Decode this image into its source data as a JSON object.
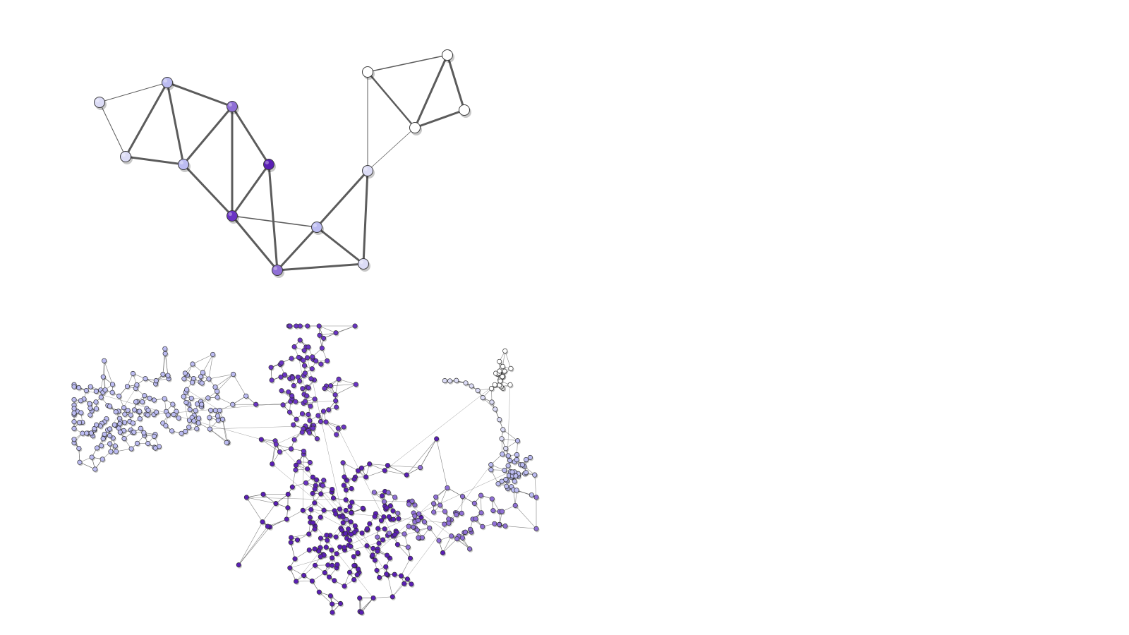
{
  "palette": {
    "n0": "#ffffff",
    "n1": "#dcdcf6",
    "n2": "#bcbcf2",
    "n3": "#8f6fd6",
    "n4": "#6a34c4",
    "n5": "#5a1fb4",
    "edge": "#5c5c5c"
  },
  "small_graph": {
    "nodes": [
      {
        "id": "a",
        "shade": "n1"
      },
      {
        "id": "b",
        "shade": "n2"
      },
      {
        "id": "c",
        "shade": "n1"
      },
      {
        "id": "d",
        "shade": "n2"
      },
      {
        "id": "e",
        "shade": "n3"
      },
      {
        "id": "f",
        "shade": "n5"
      },
      {
        "id": "g",
        "shade": "n4"
      },
      {
        "id": "h",
        "shade": "n3"
      },
      {
        "id": "i",
        "shade": "n2"
      },
      {
        "id": "j",
        "shade": "n1"
      },
      {
        "id": "k",
        "shade": "n1"
      },
      {
        "id": "l",
        "shade": "n0"
      },
      {
        "id": "m",
        "shade": "n0"
      },
      {
        "id": "n",
        "shade": "n0"
      },
      {
        "id": "o",
        "shade": "n0"
      }
    ],
    "edges": [
      [
        "a",
        "b",
        1
      ],
      [
        "a",
        "c",
        1
      ],
      [
        "b",
        "c",
        3
      ],
      [
        "b",
        "d",
        3
      ],
      [
        "c",
        "d",
        3
      ],
      [
        "b",
        "e",
        3
      ],
      [
        "d",
        "e",
        3
      ],
      [
        "d",
        "g",
        3
      ],
      [
        "e",
        "g",
        3
      ],
      [
        "e",
        "f",
        3
      ],
      [
        "f",
        "g",
        3
      ],
      [
        "f",
        "h",
        3
      ],
      [
        "g",
        "h",
        3
      ],
      [
        "g",
        "i",
        1.5
      ],
      [
        "h",
        "i",
        3
      ],
      [
        "h",
        "j",
        3
      ],
      [
        "i",
        "j",
        3
      ],
      [
        "i",
        "k",
        3
      ],
      [
        "j",
        "k",
        3
      ],
      [
        "k",
        "l",
        1
      ],
      [
        "k",
        "o",
        0.8
      ],
      [
        "l",
        "o",
        2.5
      ],
      [
        "l",
        "m",
        1.5
      ],
      [
        "m",
        "o",
        3
      ],
      [
        "m",
        "n",
        3
      ],
      [
        "n",
        "o",
        3
      ]
    ]
  },
  "large_graph": {
    "clusters": [
      {
        "id": "left-cluster",
        "shade": "n2",
        "count": 120
      },
      {
        "id": "mid-left-cluster",
        "shade": "n2",
        "count": 70
      },
      {
        "id": "upper-purple-cluster",
        "shade": "n4",
        "count": 110
      },
      {
        "id": "center-purple-cluster",
        "shade": "n5",
        "count": 190
      },
      {
        "id": "lower-right-arm",
        "shade": "n3",
        "count": 70
      },
      {
        "id": "right-lilac-cluster",
        "shade": "n2",
        "count": 40
      },
      {
        "id": "top-right-white-cluster",
        "shade": "n0",
        "count": 22
      }
    ]
  }
}
